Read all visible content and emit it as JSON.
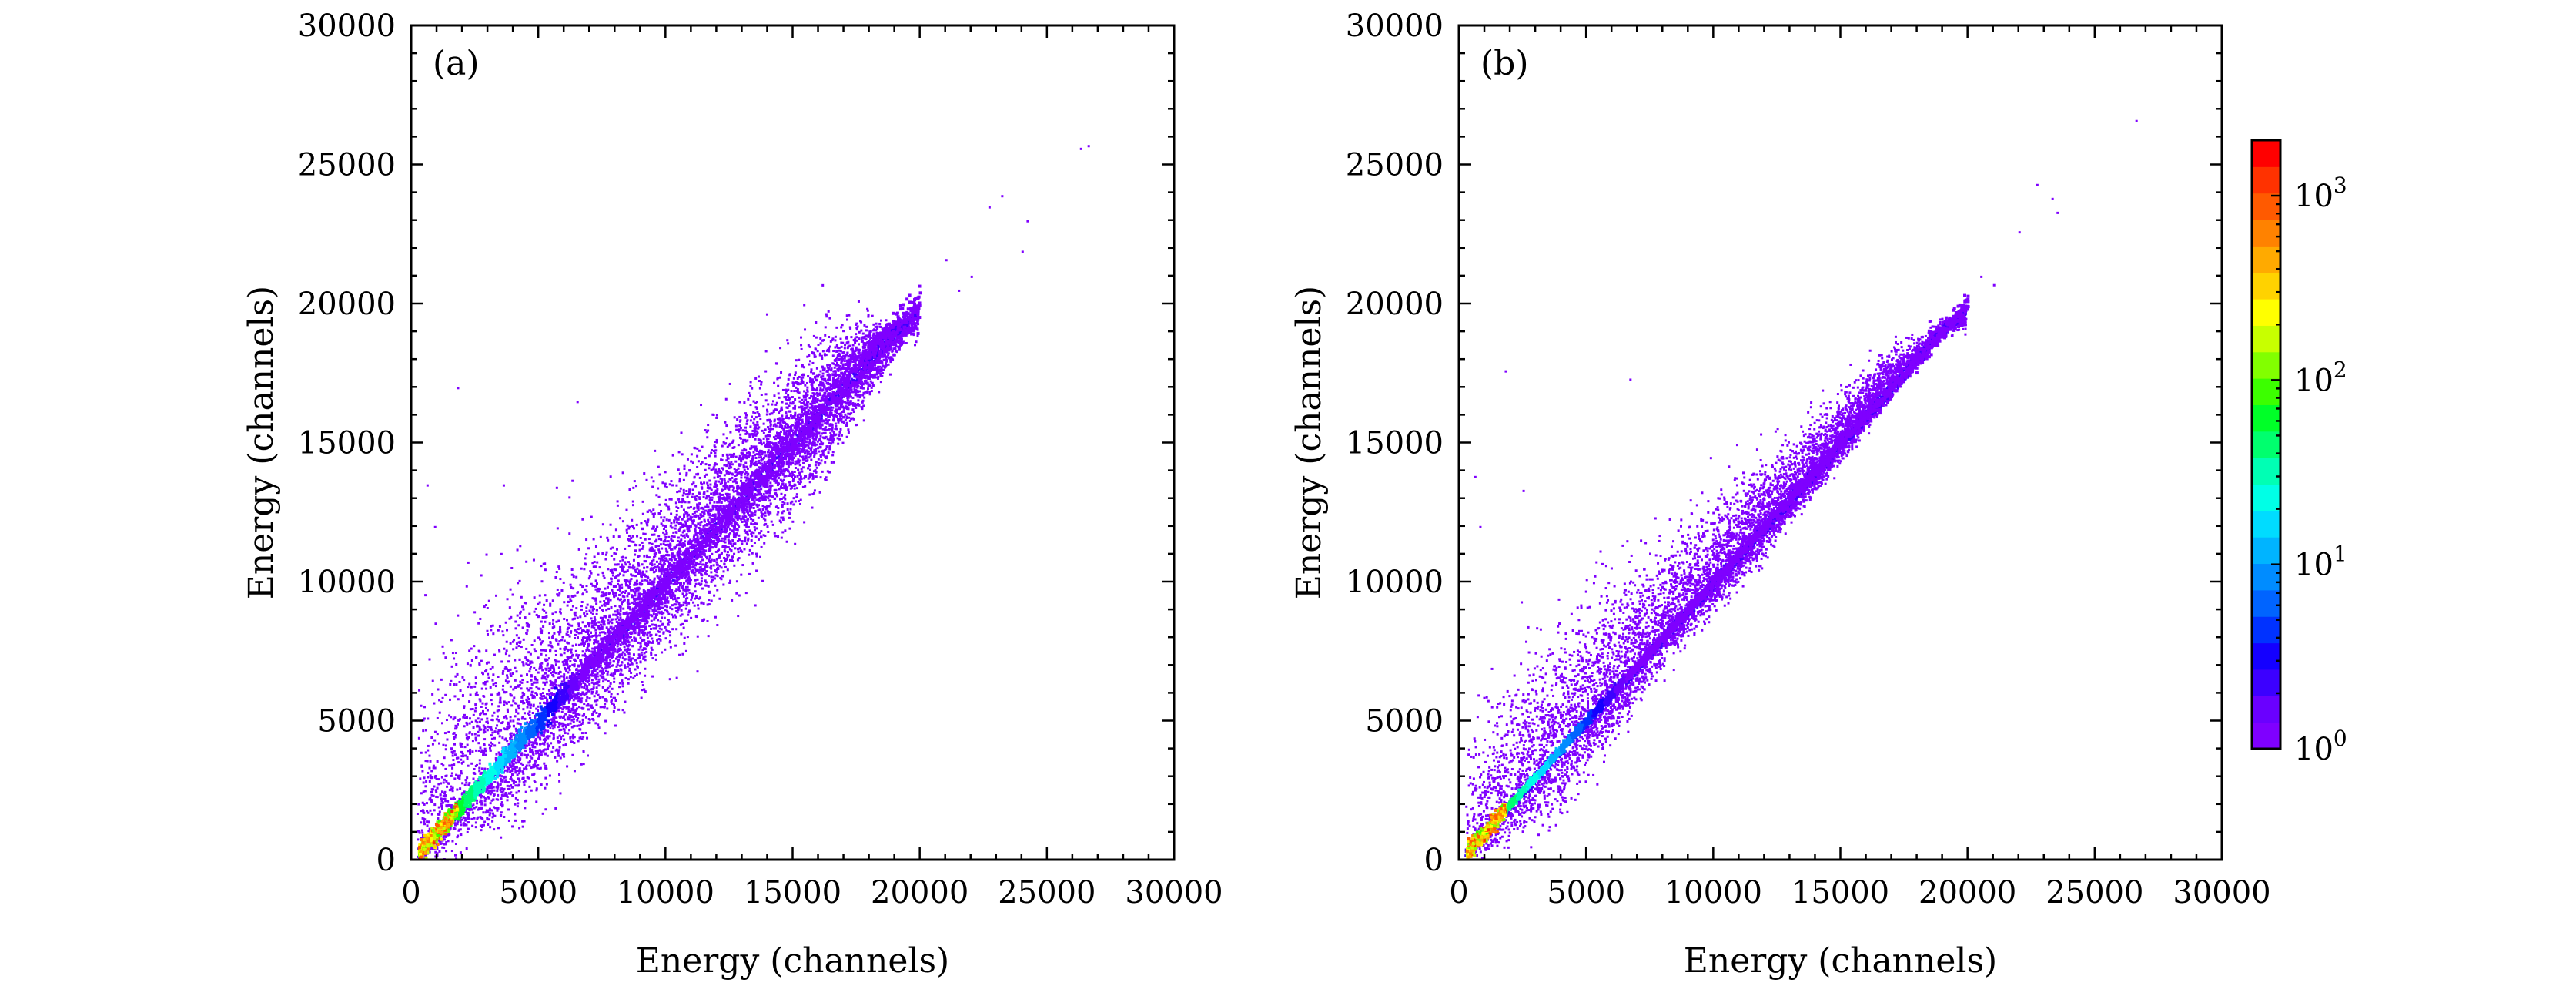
{
  "chart_data": [
    {
      "type": "heatmap",
      "panel_label": "(a)",
      "xlabel": "Energy (channels)",
      "ylabel": "Energy (channels)",
      "xlim": [
        0,
        30000
      ],
      "ylim": [
        0,
        30000
      ],
      "xticks": [
        "0",
        "5000",
        "10000",
        "15000",
        "20000",
        "25000",
        "30000"
      ],
      "yticks": [
        "0",
        "5000",
        "10000",
        "15000",
        "20000",
        "25000",
        "30000"
      ],
      "description_data": {
        "correlation_slope": 1.0,
        "main_band_extent_max": 20000,
        "upper_scatter_band": [
          [
            300,
            5200
          ],
          [
            3000,
            8000
          ],
          [
            8000,
            11500
          ],
          [
            12000,
            15000
          ],
          [
            16000,
            18500
          ],
          [
            19500,
            19500
          ]
        ],
        "lower_scatter_band": [
          [
            500,
            0
          ],
          [
            4000,
            2000
          ],
          [
            8000,
            6000
          ],
          [
            12000,
            10000
          ],
          [
            16000,
            14000
          ],
          [
            19500,
            19000
          ]
        ],
        "outliers": [
          [
            26300,
            25600
          ],
          [
            26600,
            25700
          ],
          [
            23200,
            23900
          ],
          [
            22700,
            23500
          ],
          [
            24200,
            23000
          ],
          [
            24000,
            21900
          ],
          [
            21500,
            20500
          ],
          [
            22000,
            21000
          ],
          [
            21000,
            21600
          ],
          [
            1800,
            17000
          ],
          [
            6500,
            16500
          ],
          [
            600,
            13500
          ],
          [
            3600,
            13500
          ],
          [
            900,
            12000
          ]
        ]
      }
    },
    {
      "type": "heatmap",
      "panel_label": "(b)",
      "xlabel": "Energy (channels)",
      "ylabel": "Energy (channels)",
      "xlim": [
        0,
        30000
      ],
      "ylim": [
        0,
        30000
      ],
      "xticks": [
        "0",
        "5000",
        "10000",
        "15000",
        "20000",
        "25000",
        "30000"
      ],
      "yticks": [
        "0",
        "5000",
        "10000",
        "15000",
        "20000",
        "25000",
        "30000"
      ],
      "description_data": {
        "correlation_slope": 1.0,
        "main_band_extent_max": 20000,
        "upper_scatter_band": [
          [
            300,
            5200
          ],
          [
            3000,
            8000
          ],
          [
            8000,
            11500
          ],
          [
            12000,
            14500
          ],
          [
            16000,
            17800
          ],
          [
            19000,
            19500
          ]
        ],
        "lower_scatter_band": [
          [
            500,
            0
          ],
          [
            4000,
            1500
          ],
          [
            8000,
            7000
          ],
          [
            12000,
            11000
          ],
          [
            16000,
            15500
          ],
          [
            19000,
            19000
          ]
        ],
        "outliers": [
          [
            26600,
            26600
          ],
          [
            22700,
            24300
          ],
          [
            23300,
            23800
          ],
          [
            23500,
            23300
          ],
          [
            22000,
            22600
          ],
          [
            20500,
            21000
          ],
          [
            21000,
            20700
          ],
          [
            1800,
            17600
          ],
          [
            6700,
            17300
          ],
          [
            600,
            13800
          ],
          [
            2500,
            13300
          ],
          [
            800,
            12000
          ]
        ]
      }
    }
  ],
  "colorbar": {
    "scale": "log",
    "range": [
      1,
      2000
    ],
    "tick_values": [
      1,
      10,
      100,
      1000
    ],
    "tick_labels": [
      {
        "base": "10",
        "exp": "0"
      },
      {
        "base": "10",
        "exp": "1"
      },
      {
        "base": "10",
        "exp": "2"
      },
      {
        "base": "10",
        "exp": "3"
      }
    ],
    "colors": [
      "#7f00ff",
      "#6a00ff",
      "#3c00ff",
      "#1400ff",
      "#0032ff",
      "#0064ff",
      "#008cff",
      "#00b4ff",
      "#00dcff",
      "#00ffe6",
      "#00ffb4",
      "#00ff6e",
      "#00ff28",
      "#3cff00",
      "#82ff00",
      "#c8ff00",
      "#ffff00",
      "#ffd200",
      "#ffaa00",
      "#ff8200",
      "#ff5a00",
      "#ff3200",
      "#ff0000"
    ]
  }
}
